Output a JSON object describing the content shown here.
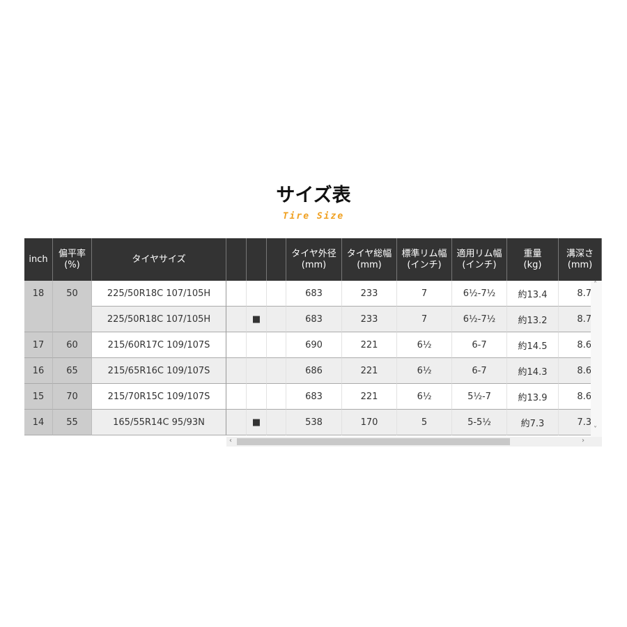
{
  "title": "サイズ表",
  "subtitle": "Tire Size",
  "headers": [
    "inch",
    "偏平率\n(%)",
    "タイヤサイズ",
    "",
    "",
    "",
    "タイヤ外径\n(mm)",
    "タイヤ総幅\n(mm)",
    "標準リム幅\n(インチ)",
    "適用リム幅\n(インチ)",
    "重量\n(kg)",
    "溝深さ\n(mm)"
  ],
  "rows": [
    [
      "18",
      "50",
      "225/50R18C 107/105H",
      "",
      "",
      "",
      "683",
      "233",
      "7",
      "6½-7½",
      "約13.4",
      "8.7"
    ],
    [
      "",
      "",
      "225/50R18C 107/105H",
      "",
      "■",
      "",
      "683",
      "233",
      "7",
      "6½-7½",
      "約13.2",
      "8.7"
    ],
    [
      "17",
      "60",
      "215/60R17C 109/107S",
      "",
      "",
      "",
      "690",
      "221",
      "6½",
      "6-7",
      "約14.5",
      "8.6"
    ],
    [
      "16",
      "65",
      "215/65R16C 109/107S",
      "",
      "",
      "",
      "686",
      "221",
      "6½",
      "6-7",
      "約14.3",
      "8.6"
    ],
    [
      "15",
      "70",
      "215/70R15C 109/107S",
      "",
      "",
      "",
      "683",
      "221",
      "6½",
      "5½-7",
      "約13.9",
      "8.6"
    ],
    [
      "14",
      "55",
      "165/55R14C 95/93N",
      "",
      "■",
      "",
      "538",
      "170",
      "5",
      "5-5½",
      "約7.3",
      "7.3"
    ]
  ],
  "scroll": {
    "left": "‹",
    "right": "›",
    "up": "˄",
    "down": "˅"
  }
}
